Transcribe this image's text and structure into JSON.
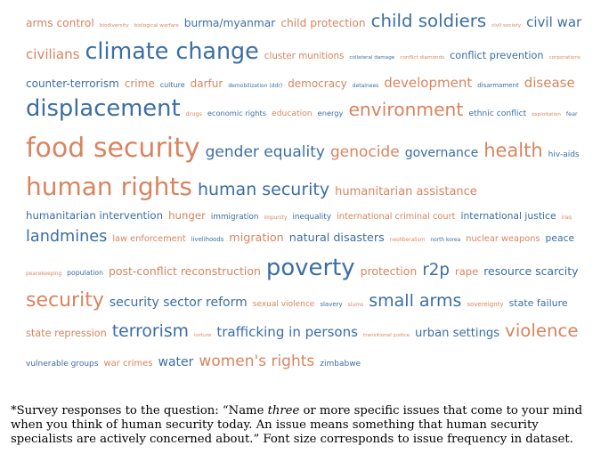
{
  "rows": [
    [
      [
        "arms control",
        13,
        "o"
      ],
      [
        "biodiversity",
        6,
        "o"
      ],
      [
        "biological warfare",
        6,
        "o"
      ],
      [
        "burma/myanmar",
        13,
        "b"
      ],
      [
        "child protection",
        13,
        "o"
      ],
      [
        "child soldiers",
        21,
        "b"
      ],
      [
        "civil society",
        6,
        "o"
      ],
      [
        "civil war",
        16,
        "b"
      ]
    ],
    [
      [
        "civilians",
        16,
        "o"
      ],
      [
        "climate change",
        27,
        "b"
      ],
      [
        "cluster munitions",
        11,
        "o"
      ],
      [
        "collateral damage",
        6,
        "b"
      ],
      [
        "conflict diamonds",
        6,
        "o"
      ],
      [
        "conflict prevention",
        12,
        "b"
      ],
      [
        "corporations",
        6,
        "o"
      ]
    ],
    [
      [
        "counter-terrorism",
        12,
        "b"
      ],
      [
        "crime",
        12,
        "o"
      ],
      [
        "culture",
        8,
        "b"
      ],
      [
        "darfur",
        12,
        "o"
      ],
      [
        "demobilization (ddr)",
        6,
        "b"
      ],
      [
        "democracy",
        12,
        "o"
      ],
      [
        "detainees",
        6,
        "b"
      ],
      [
        "development",
        15,
        "o"
      ],
      [
        "disarmament",
        7,
        "b"
      ],
      [
        "disease",
        15,
        "o"
      ]
    ],
    [
      [
        "displacement",
        28,
        "b"
      ],
      [
        "drugs",
        7,
        "o"
      ],
      [
        "economic rights",
        9,
        "b"
      ],
      [
        "education",
        10,
        "o"
      ],
      [
        "energy",
        9,
        "b"
      ],
      [
        "environment",
        22,
        "o"
      ],
      [
        "ethnic conflict",
        10,
        "b"
      ],
      [
        "exploitation",
        6,
        "o"
      ],
      [
        "fear",
        7,
        "b"
      ]
    ],
    [
      [
        "food security",
        30,
        "o"
      ],
      [
        "gender equality",
        17,
        "b"
      ],
      [
        "genocide",
        17,
        "o"
      ],
      [
        "governance",
        14,
        "b"
      ],
      [
        "health",
        21,
        "o"
      ],
      [
        "hiv-aids",
        9,
        "b"
      ]
    ],
    [
      [
        "human rights",
        28,
        "o"
      ],
      [
        "human security",
        19,
        "b"
      ],
      [
        "humanitarian assistance",
        13,
        "o"
      ]
    ],
    [
      [
        "humanitarian intervention",
        12,
        "b"
      ],
      [
        "hunger",
        12,
        "o"
      ],
      [
        "immigration",
        9,
        "b"
      ],
      [
        "impunity",
        6,
        "o"
      ],
      [
        "inequality",
        9,
        "b"
      ],
      [
        "international criminal court",
        10,
        "o"
      ],
      [
        "international justice",
        11,
        "b"
      ],
      [
        "iraq",
        6,
        "o"
      ]
    ],
    [
      [
        "landmines",
        18,
        "b"
      ],
      [
        "law enforcement",
        10,
        "o"
      ],
      [
        "livelihoods",
        7,
        "b"
      ],
      [
        "migration",
        13,
        "o"
      ],
      [
        "natural disasters",
        13,
        "b"
      ],
      [
        "neoliberalism",
        6,
        "o"
      ],
      [
        "north korea",
        6,
        "b"
      ],
      [
        "nuclear weapons",
        10,
        "o"
      ],
      [
        "peace",
        11,
        "b"
      ]
    ],
    [
      [
        "peacekeeping",
        6,
        "o"
      ],
      [
        "population",
        8,
        "b"
      ],
      [
        "post-conflict reconstruction",
        13,
        "o"
      ],
      [
        "poverty",
        27,
        "b"
      ],
      [
        "protection",
        13,
        "o"
      ],
      [
        "r2p",
        19,
        "b"
      ],
      [
        "rape",
        12,
        "o"
      ],
      [
        "resource scarcity",
        13,
        "b"
      ]
    ],
    [
      [
        "security",
        22,
        "o"
      ],
      [
        "security sector reform",
        14,
        "b"
      ],
      [
        "sexual violence",
        9,
        "o"
      ],
      [
        "slavery",
        7,
        "b"
      ],
      [
        "slums",
        6,
        "o"
      ],
      [
        "small arms",
        19,
        "b"
      ],
      [
        "sovereignty",
        7,
        "o"
      ],
      [
        "state failure",
        11,
        "b"
      ]
    ],
    [
      [
        "state repression",
        12,
        "o"
      ],
      [
        "terrorism",
        20,
        "b"
      ],
      [
        "torture",
        6,
        "o"
      ],
      [
        "trafficking in persons",
        16,
        "b"
      ],
      [
        "transitional justice",
        6,
        "o"
      ],
      [
        "urban settings",
        14,
        "b"
      ],
      [
        "violence",
        21,
        "o"
      ]
    ],
    [
      [
        "vulnerable groups",
        9,
        "b"
      ],
      [
        "war crimes",
        10,
        "o"
      ],
      [
        "water",
        14,
        "b"
      ],
      [
        "women's rights",
        17,
        "o"
      ],
      [
        "zimbabwe",
        9,
        "b"
      ]
    ]
  ],
  "caption": {
    "p1": "*Survey responses to the question: “Name ",
    "em": "three",
    "p2": " or more specific issues that come to your mind when you think of human security today. An issue means something that human security specialists are actively concerned about.” Font size corresponds to issue frequency in dataset."
  }
}
